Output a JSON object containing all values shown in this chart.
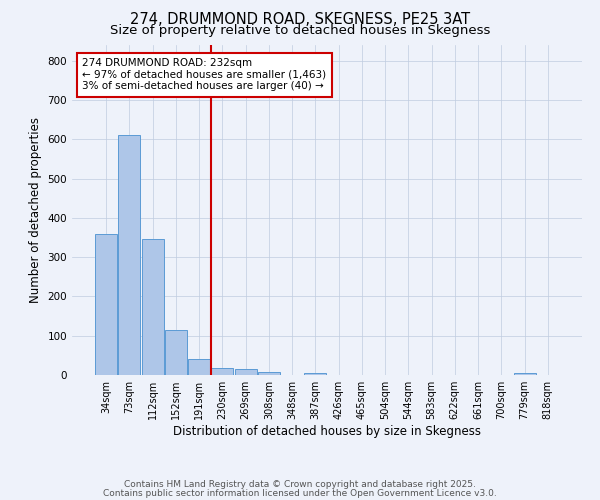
{
  "title1": "274, DRUMMOND ROAD, SKEGNESS, PE25 3AT",
  "title2": "Size of property relative to detached houses in Skegness",
  "xlabel": "Distribution of detached houses by size in Skegness",
  "ylabel": "Number of detached properties",
  "categories": [
    "34sqm",
    "73sqm",
    "112sqm",
    "152sqm",
    "191sqm",
    "230sqm",
    "269sqm",
    "308sqm",
    "348sqm",
    "387sqm",
    "426sqm",
    "465sqm",
    "504sqm",
    "544sqm",
    "583sqm",
    "622sqm",
    "661sqm",
    "700sqm",
    "779sqm",
    "818sqm"
  ],
  "values": [
    360,
    610,
    345,
    115,
    40,
    18,
    15,
    7,
    0,
    5,
    0,
    0,
    0,
    0,
    0,
    0,
    0,
    0,
    5,
    0
  ],
  "bar_color": "#aec6e8",
  "bar_edge_color": "#5b9bd5",
  "vline_color": "#cc0000",
  "annotation_text": "274 DRUMMOND ROAD: 232sqm\n← 97% of detached houses are smaller (1,463)\n3% of semi-detached houses are larger (40) →",
  "annotation_box_color": "#cc0000",
  "annotation_text_color": "#000000",
  "ylim": [
    0,
    840
  ],
  "yticks": [
    0,
    100,
    200,
    300,
    400,
    500,
    600,
    700,
    800
  ],
  "footnote1": "Contains HM Land Registry data © Crown copyright and database right 2025.",
  "footnote2": "Contains public sector information licensed under the Open Government Licence v3.0.",
  "background_color": "#eef2fa",
  "plot_bg_color": "#eef2fa",
  "title_fontsize": 10.5,
  "subtitle_fontsize": 9.5,
  "tick_fontsize": 7,
  "label_fontsize": 8.5,
  "footnote_fontsize": 6.5
}
